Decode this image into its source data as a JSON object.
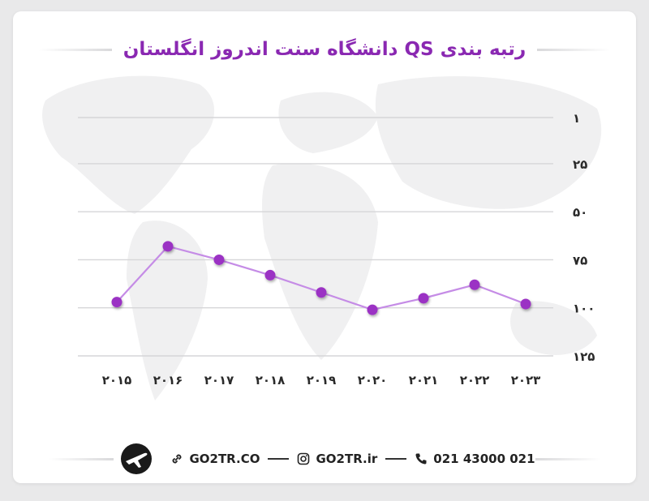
{
  "title": "رتبه بندی QS دانشگاه سنت اندروز انگلستان",
  "chart_data": {
    "type": "line",
    "x": [
      "2015",
      "2016",
      "2017",
      "2018",
      "2019",
      "2020",
      "2021",
      "2022",
      "2023"
    ],
    "x_labels": [
      "۲۰۱۵",
      "۲۰۱۶",
      "۲۰۱۷",
      "۲۰۱۸",
      "۲۰۱۹",
      "۲۰۲۰",
      "۲۰۲۱",
      "۲۰۲۲",
      "۲۰۲۳"
    ],
    "values": [
      97,
      68,
      75,
      83,
      92,
      101,
      95,
      88,
      98
    ],
    "y_ticks": [
      1,
      25,
      50,
      75,
      100,
      125
    ],
    "y_tick_labels": [
      "۱",
      "۲۵",
      "۵۰",
      "۷۵",
      "۱۰۰",
      "۱۲۵"
    ],
    "ylim": [
      1,
      125
    ],
    "y_inverted": true,
    "grid": true,
    "line_color": "#c58ce6",
    "marker_color": "#9b30c4"
  },
  "footer": {
    "website": "GO2TR.CO",
    "instagram": "GO2TR.ir",
    "phone": "021 43000 021"
  },
  "colors": {
    "title": "#8a28b2"
  }
}
